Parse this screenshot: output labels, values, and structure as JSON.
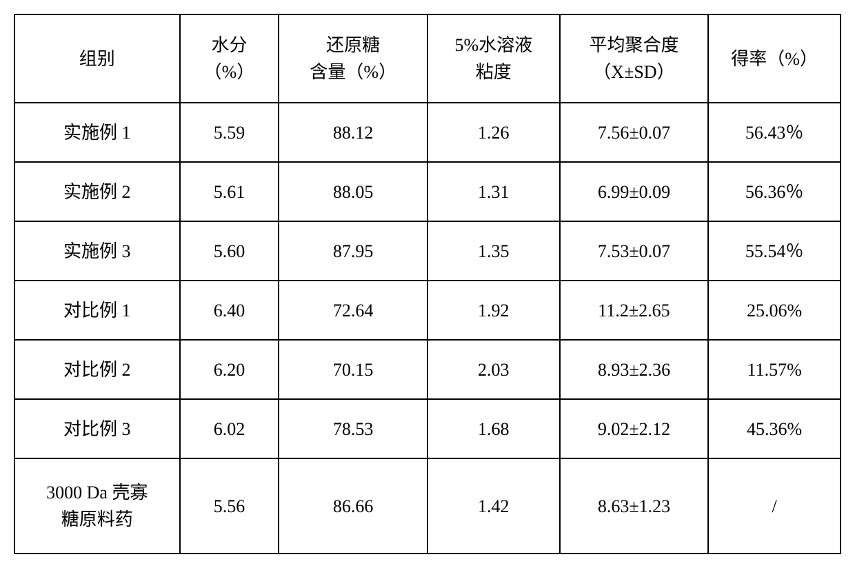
{
  "table": {
    "columns": [
      {
        "label": "组别",
        "width_pct": 20
      },
      {
        "label": "水分\n（%）",
        "width_pct": 12
      },
      {
        "label": "还原糖\n含量（%）",
        "width_pct": 18
      },
      {
        "label": "5%水溶液\n粘度",
        "width_pct": 16
      },
      {
        "label": "平均聚合度\n（X±SD）",
        "width_pct": 18
      },
      {
        "label": "得率（%）",
        "width_pct": 16
      }
    ],
    "rows": [
      {
        "cells": [
          "实施例 1",
          "5.59",
          "88.12",
          "1.26",
          "7.56±0.07",
          "56.43％"
        ],
        "tall": false
      },
      {
        "cells": [
          "实施例 2",
          "5.61",
          "88.05",
          "1.31",
          "6.99±0.09",
          "56.36％"
        ],
        "tall": false
      },
      {
        "cells": [
          "实施例 3",
          "5.60",
          "87.95",
          "1.35",
          "7.53±0.07",
          "55.54％"
        ],
        "tall": false
      },
      {
        "cells": [
          "对比例 1",
          "6.40",
          "72.64",
          "1.92",
          "11.2±2.65",
          "25.06%"
        ],
        "tall": false
      },
      {
        "cells": [
          "对比例 2",
          "6.20",
          "70.15",
          "2.03",
          "8.93±2.36",
          "11.57%"
        ],
        "tall": false
      },
      {
        "cells": [
          "对比例 3",
          "6.02",
          "78.53",
          "1.68",
          "9.02±2.12",
          "45.36%"
        ],
        "tall": false
      },
      {
        "cells": [
          "3000 Da 壳寡\n糖原料药",
          "5.56",
          "86.66",
          "1.42",
          "8.63±1.23",
          "/"
        ],
        "tall": true
      }
    ],
    "border_color": "#000000",
    "background_color": "#ffffff",
    "font_size_pt": 20,
    "font_family": "SimSun"
  }
}
